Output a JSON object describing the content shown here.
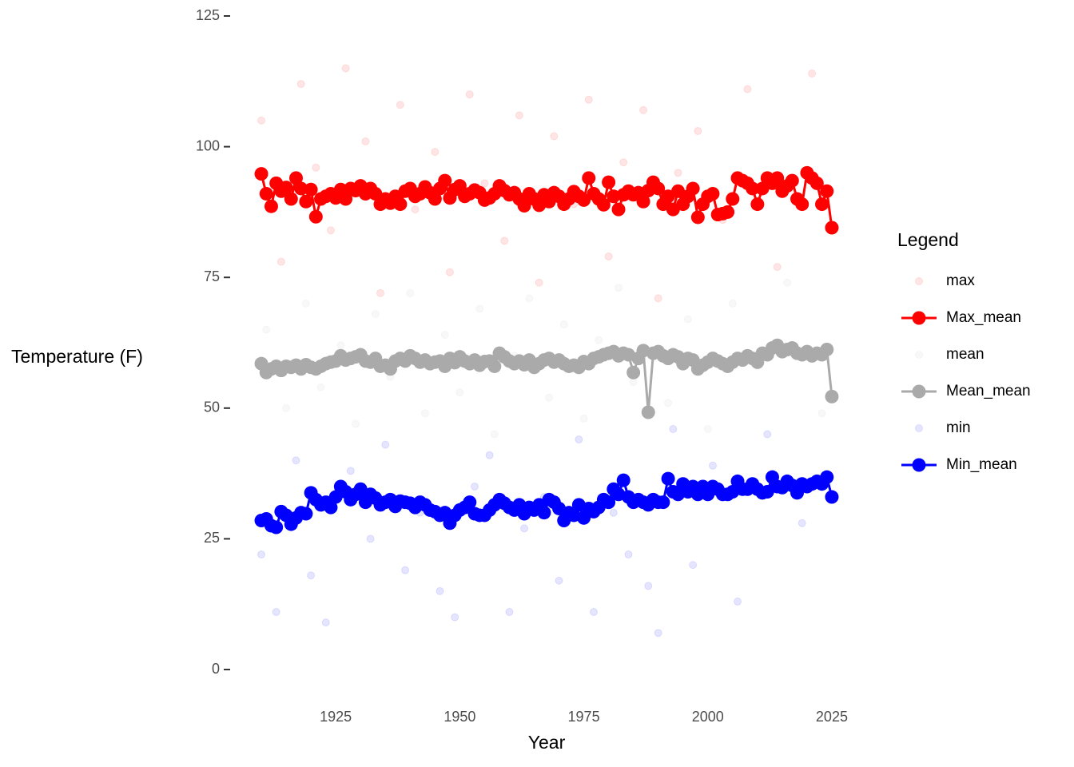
{
  "chart_data": {
    "type": "line",
    "x_label": "Year",
    "y_label": "Temperature (F)",
    "legend_title": "Legend",
    "legend": "right",
    "xlim": [
      1905,
      2030
    ],
    "xticks": [
      1925,
      1950,
      1975,
      2000,
      2025
    ],
    "ylim": [
      0,
      125
    ],
    "yticks": [
      0,
      25,
      50,
      75,
      100,
      125
    ],
    "grid": false,
    "series": [
      {
        "name": "max",
        "type": "scatter",
        "color": "#ff0000",
        "alpha": 0.1,
        "x": [
          1910,
          1914,
          1918,
          1921,
          1924,
          1927,
          1931,
          1934,
          1938,
          1941,
          1945,
          1948,
          1952,
          1955,
          1959,
          1962,
          1966,
          1969,
          1973,
          1976,
          1980,
          1983,
          1987,
          1990,
          1994,
          1998,
          2003,
          2008,
          2014,
          2021
        ],
        "values": [
          105,
          78,
          112,
          96,
          84,
          115,
          101,
          72,
          108,
          88,
          99,
          76,
          110,
          93,
          82,
          106,
          74,
          102,
          89,
          109,
          79,
          97,
          107,
          71,
          95,
          103,
          86,
          111,
          77,
          114
        ]
      },
      {
        "name": "Max_mean",
        "type": "line",
        "color": "#ff0000",
        "alpha": 1,
        "x": [
          1910,
          1911,
          1912,
          1913,
          1914,
          1915,
          1916,
          1917,
          1918,
          1919,
          1920,
          1921,
          1922,
          1923,
          1924,
          1925,
          1926,
          1927,
          1928,
          1929,
          1930,
          1931,
          1932,
          1933,
          1934,
          1935,
          1936,
          1937,
          1938,
          1939,
          1940,
          1941,
          1942,
          1943,
          1944,
          1945,
          1946,
          1947,
          1948,
          1949,
          1950,
          1951,
          1952,
          1953,
          1954,
          1955,
          1956,
          1957,
          1958,
          1959,
          1960,
          1961,
          1962,
          1963,
          1964,
          1965,
          1966,
          1967,
          1968,
          1969,
          1970,
          1971,
          1972,
          1973,
          1974,
          1975,
          1976,
          1977,
          1978,
          1979,
          1980,
          1981,
          1982,
          1983,
          1984,
          1985,
          1986,
          1987,
          1988,
          1989,
          1990,
          1991,
          1992,
          1993,
          1994,
          1995,
          1996,
          1997,
          1998,
          1999,
          2000,
          2001,
          2002,
          2003,
          2004,
          2005,
          2006,
          2007,
          2008,
          2009,
          2010,
          2011,
          2012,
          2013,
          2014,
          2015,
          2016,
          2017,
          2018,
          2019,
          2020,
          2021,
          2022,
          2023,
          2024,
          2025
        ],
        "values": [
          94.8,
          91,
          88.6,
          93,
          91.5,
          92.2,
          90,
          94,
          92,
          89.5,
          91.8,
          86.6,
          90,
          90.5,
          91,
          90.2,
          91.8,
          90,
          92,
          91.6,
          92.5,
          91,
          92,
          91,
          89,
          90,
          89.2,
          90.5,
          89,
          91.5,
          92,
          90.5,
          91,
          92.3,
          91.2,
          90,
          92,
          93.5,
          90.2,
          91.8,
          92.5,
          90.5,
          91,
          91.7,
          91.2,
          89.8,
          90.2,
          91,
          92.5,
          91.6,
          90.8,
          91.2,
          90,
          88.7,
          91,
          90,
          88.8,
          90.8,
          89.5,
          91.2,
          90.5,
          89,
          90,
          91.4,
          90.5,
          89.8,
          94,
          91,
          90,
          88.9,
          93.2,
          90.5,
          88,
          90.8,
          91.5,
          90.8,
          91.2,
          89.5,
          91.6,
          93.2,
          92,
          89,
          90.5,
          88,
          91.5,
          89,
          90.5,
          92,
          86.5,
          89,
          90.5,
          91,
          87,
          87.2,
          87.5,
          90,
          94,
          93.5,
          93,
          92,
          89,
          92,
          94,
          93,
          94,
          91.5,
          92.5,
          93.5,
          90,
          89,
          95,
          94,
          93,
          89,
          91.5,
          84.5
        ]
      },
      {
        "name": "mean",
        "type": "scatter",
        "color": "#bfbfbf",
        "alpha": 0.1,
        "x": [
          1911,
          1915,
          1919,
          1922,
          1926,
          1929,
          1933,
          1936,
          1940,
          1943,
          1947,
          1950,
          1954,
          1957,
          1961,
          1964,
          1968,
          1971,
          1975,
          1978,
          1982,
          1985,
          1989,
          1992,
          1996,
          2000,
          2005,
          2010,
          2016,
          2023
        ],
        "values": [
          65,
          50,
          70,
          54,
          62,
          47,
          68,
          56,
          72,
          49,
          64,
          53,
          69,
          45,
          60,
          71,
          52,
          66,
          48,
          63,
          73,
          55,
          61,
          51,
          67,
          46,
          70,
          58,
          74,
          49
        ]
      },
      {
        "name": "Mean_mean",
        "type": "line",
        "color": "#aaaaaa",
        "alpha": 1,
        "x": [
          1910,
          1911,
          1912,
          1913,
          1914,
          1915,
          1916,
          1917,
          1918,
          1919,
          1920,
          1921,
          1922,
          1923,
          1924,
          1925,
          1926,
          1927,
          1928,
          1929,
          1930,
          1931,
          1932,
          1933,
          1934,
          1935,
          1936,
          1937,
          1938,
          1939,
          1940,
          1941,
          1942,
          1943,
          1944,
          1945,
          1946,
          1947,
          1948,
          1949,
          1950,
          1951,
          1952,
          1953,
          1954,
          1955,
          1956,
          1957,
          1958,
          1959,
          1960,
          1961,
          1962,
          1963,
          1964,
          1965,
          1966,
          1967,
          1968,
          1969,
          1970,
          1971,
          1972,
          1973,
          1974,
          1975,
          1976,
          1977,
          1978,
          1979,
          1980,
          1981,
          1982,
          1983,
          1984,
          1985,
          1986,
          1987,
          1988,
          1989,
          1990,
          1991,
          1992,
          1993,
          1994,
          1995,
          1996,
          1997,
          1998,
          1999,
          2000,
          2001,
          2002,
          2003,
          2004,
          2005,
          2006,
          2007,
          2008,
          2009,
          2010,
          2011,
          2012,
          2013,
          2014,
          2015,
          2016,
          2017,
          2018,
          2019,
          2020,
          2021,
          2022,
          2023,
          2024,
          2025
        ],
        "values": [
          58.5,
          56.8,
          57.5,
          58,
          57.2,
          58,
          57.8,
          58.2,
          57.5,
          58.3,
          57.8,
          57.5,
          58,
          58.5,
          58.8,
          59,
          60,
          59.2,
          59.5,
          59.8,
          60.2,
          59,
          58.8,
          59.5,
          58,
          58.2,
          57.5,
          59,
          59.5,
          59,
          60,
          59.5,
          58.8,
          59.2,
          58.5,
          58.8,
          59,
          58,
          59.5,
          58.7,
          59.8,
          59,
          58.5,
          59.2,
          58.2,
          58.9,
          59,
          58,
          60.5,
          59.8,
          59,
          58.5,
          59,
          58.3,
          59.2,
          57.8,
          58.5,
          59.2,
          59.5,
          58.8,
          59.2,
          58.5,
          58,
          58.2,
          57.8,
          58.9,
          58.5,
          59.5,
          59.8,
          60.2,
          60.5,
          60.8,
          60,
          60.5,
          60.2,
          56.8,
          59.5,
          61,
          49.2,
          60.5,
          60.8,
          60,
          59.5,
          60.2,
          59.8,
          58.5,
          59.5,
          59.2,
          57.5,
          58.2,
          58.8,
          59.5,
          59,
          58.5,
          58,
          58.8,
          59.5,
          59.2,
          60,
          59.5,
          58.8,
          60.5,
          60.2,
          61.5,
          62,
          60.8,
          61.2,
          61.5,
          60.5,
          60.2,
          60.8,
          60,
          60.5,
          60.2,
          61.2,
          52.2
        ]
      },
      {
        "name": "min",
        "type": "scatter",
        "color": "#0000ff",
        "alpha": 0.1,
        "x": [
          1910,
          1913,
          1917,
          1920,
          1923,
          1928,
          1932,
          1935,
          1939,
          1942,
          1946,
          1949,
          1953,
          1956,
          1960,
          1963,
          1967,
          1970,
          1974,
          1977,
          1981,
          1984,
          1988,
          1990,
          1993,
          1997,
          2001,
          2006,
          2012,
          2019
        ],
        "values": [
          22,
          11,
          40,
          18,
          9,
          38,
          25,
          43,
          19,
          30,
          15,
          10,
          35,
          41,
          11,
          27,
          33,
          17,
          44,
          11,
          30,
          22,
          16,
          7,
          46,
          20,
          39,
          13,
          45,
          28
        ]
      },
      {
        "name": "Min_mean",
        "type": "line",
        "color": "#0000ff",
        "alpha": 1,
        "x": [
          1910,
          1911,
          1912,
          1913,
          1914,
          1915,
          1916,
          1917,
          1918,
          1919,
          1920,
          1921,
          1922,
          1923,
          1924,
          1925,
          1926,
          1927,
          1928,
          1929,
          1930,
          1931,
          1932,
          1933,
          1934,
          1935,
          1936,
          1937,
          1938,
          1939,
          1940,
          1941,
          1942,
          1943,
          1944,
          1945,
          1946,
          1947,
          1948,
          1949,
          1950,
          1951,
          1952,
          1953,
          1954,
          1955,
          1956,
          1957,
          1958,
          1959,
          1960,
          1961,
          1962,
          1963,
          1964,
          1965,
          1966,
          1967,
          1968,
          1969,
          1970,
          1971,
          1972,
          1973,
          1974,
          1975,
          1976,
          1977,
          1978,
          1979,
          1980,
          1981,
          1982,
          1983,
          1984,
          1985,
          1986,
          1987,
          1988,
          1989,
          1990,
          1991,
          1992,
          1993,
          1994,
          1995,
          1996,
          1997,
          1998,
          1999,
          2000,
          2001,
          2002,
          2003,
          2004,
          2005,
          2006,
          2007,
          2008,
          2009,
          2010,
          2011,
          2012,
          2013,
          2014,
          2015,
          2016,
          2017,
          2018,
          2019,
          2020,
          2021,
          2022,
          2023,
          2024,
          2025
        ],
        "values": [
          28.5,
          28.8,
          27.5,
          27.2,
          30.2,
          29.5,
          27.8,
          29,
          30,
          29.8,
          33.8,
          32.5,
          31.5,
          32,
          31,
          33,
          35,
          34,
          32.5,
          33.5,
          34.5,
          32,
          33.5,
          32.8,
          31.5,
          32,
          32.5,
          31.2,
          32.2,
          32,
          31.8,
          31,
          32,
          31.5,
          30.5,
          30.2,
          29.5,
          30,
          28,
          29.5,
          30.5,
          31,
          32,
          29.8,
          29.5,
          29.5,
          30.5,
          31.5,
          32.5,
          31.8,
          31,
          30.5,
          31.5,
          29.8,
          31,
          30.5,
          31.5,
          30,
          32.5,
          32,
          30.8,
          28.5,
          30,
          29.5,
          31.5,
          29,
          30.8,
          30.2,
          31,
          32.5,
          32,
          34.5,
          33.5,
          36.2,
          33,
          32,
          32.5,
          32,
          31.5,
          32.5,
          32,
          32,
          36.5,
          34,
          33.5,
          35.5,
          34,
          35,
          33.5,
          35,
          33.5,
          35,
          34.5,
          33.5,
          33.5,
          34,
          36,
          34.5,
          34.5,
          35.5,
          34.5,
          33.8,
          34,
          36.8,
          35,
          34.8,
          36,
          35.2,
          33.8,
          35.5,
          35,
          35.5,
          36,
          35.5,
          36.8,
          33
        ]
      }
    ]
  }
}
